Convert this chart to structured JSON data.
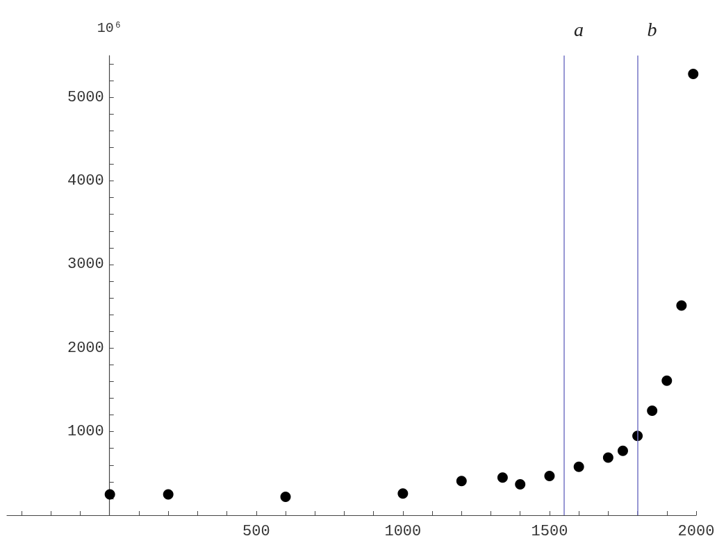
{
  "chart_data": {
    "type": "scatter",
    "ylabel": "10⁶",
    "x": [
      1,
      200,
      600,
      1000,
      1200,
      1340,
      1400,
      1500,
      1600,
      1700,
      1750,
      1800,
      1850,
      1900,
      1950,
      1990
    ],
    "values": [
      250,
      250,
      220,
      260,
      410,
      450,
      370,
      470,
      580,
      690,
      770,
      950,
      1250,
      1610,
      2510,
      5280
    ],
    "color": "#000000",
    "marker": "circle",
    "xlim": [
      -350,
      2000
    ],
    "xticks": [
      {
        "value": -300,
        "label": null
      },
      {
        "value": -200,
        "label": null
      },
      {
        "value": -100,
        "label": null
      },
      {
        "value": 100,
        "label": null
      },
      {
        "value": 200,
        "label": null
      },
      {
        "value": 300,
        "label": null
      },
      {
        "value": 400,
        "label": null
      },
      500,
      {
        "value": 600,
        "label": null
      },
      {
        "value": 700,
        "label": null
      },
      {
        "value": 800,
        "label": null
      },
      {
        "value": 900,
        "label": null
      },
      1000,
      {
        "value": 1100,
        "label": null
      },
      {
        "value": 1200,
        "label": null
      },
      {
        "value": 1300,
        "label": null
      },
      {
        "value": 1400,
        "label": null
      },
      1500,
      {
        "value": 1600,
        "label": null
      },
      {
        "value": 1700,
        "label": null
      },
      {
        "value": 1800,
        "label": null
      },
      {
        "value": 1900,
        "label": null
      },
      2000
    ],
    "ylim": [
      0,
      5500
    ],
    "yticks": [
      {
        "value": 200,
        "label": null
      },
      {
        "value": 400,
        "label": null
      },
      {
        "value": 600,
        "label": null
      },
      {
        "value": 800,
        "label": null
      },
      1000,
      {
        "value": 1200,
        "label": null
      },
      {
        "value": 1400,
        "label": null
      },
      {
        "value": 1600,
        "label": null
      },
      {
        "value": 1800,
        "label": null
      },
      2000,
      {
        "value": 2200,
        "label": null
      },
      {
        "value": 2400,
        "label": null
      },
      {
        "value": 2600,
        "label": null
      },
      {
        "value": 2800,
        "label": null
      },
      3000,
      {
        "value": 3200,
        "label": null
      },
      {
        "value": 3400,
        "label": null
      },
      {
        "value": 3600,
        "label": null
      },
      {
        "value": 3800,
        "label": null
      },
      4000,
      {
        "value": 4200,
        "label": null
      },
      {
        "value": 4400,
        "label": null
      },
      {
        "value": 4600,
        "label": null
      },
      {
        "value": 4800,
        "label": null
      },
      5000,
      {
        "value": 5200,
        "label": null
      },
      {
        "value": 5400,
        "label": null
      }
    ],
    "ref_lines": [
      {
        "axis": "x",
        "value": 1550,
        "label": "a",
        "color": "#7474c4"
      },
      {
        "axis": "x",
        "value": 1800,
        "label": "b",
        "color": "#7474c4"
      }
    ]
  }
}
